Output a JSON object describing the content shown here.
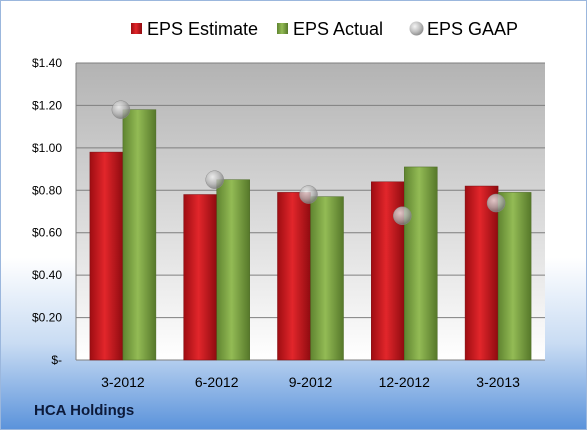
{
  "company": "HCA Holdings",
  "colors": {
    "estimate": "#c8171c",
    "actual": "#7ea342",
    "gaap": "#b8b8b8"
  },
  "chart_data": {
    "type": "bar",
    "categories": [
      "3-2012",
      "6-2012",
      "9-2012",
      "12-2012",
      "3-2013"
    ],
    "series": [
      {
        "name": "EPS Estimate",
        "type": "bar",
        "values": [
          0.98,
          0.78,
          0.79,
          0.84,
          0.82
        ]
      },
      {
        "name": "EPS Actual",
        "type": "bar",
        "values": [
          1.18,
          0.85,
          0.77,
          0.91,
          0.79
        ]
      },
      {
        "name": "EPS GAAP",
        "type": "scatter",
        "values": [
          1.18,
          0.85,
          0.78,
          0.68,
          0.74
        ]
      }
    ],
    "ylim": [
      0,
      1.4
    ],
    "yticks": [
      0,
      0.2,
      0.4,
      0.6,
      0.8,
      1.0,
      1.2,
      1.4
    ],
    "ytick_labels": [
      "$-",
      "$0.20",
      "$0.40",
      "$0.60",
      "$0.80",
      "$1.00",
      "$1.20",
      "$1.40"
    ],
    "grid": true,
    "legend_position": "top"
  }
}
